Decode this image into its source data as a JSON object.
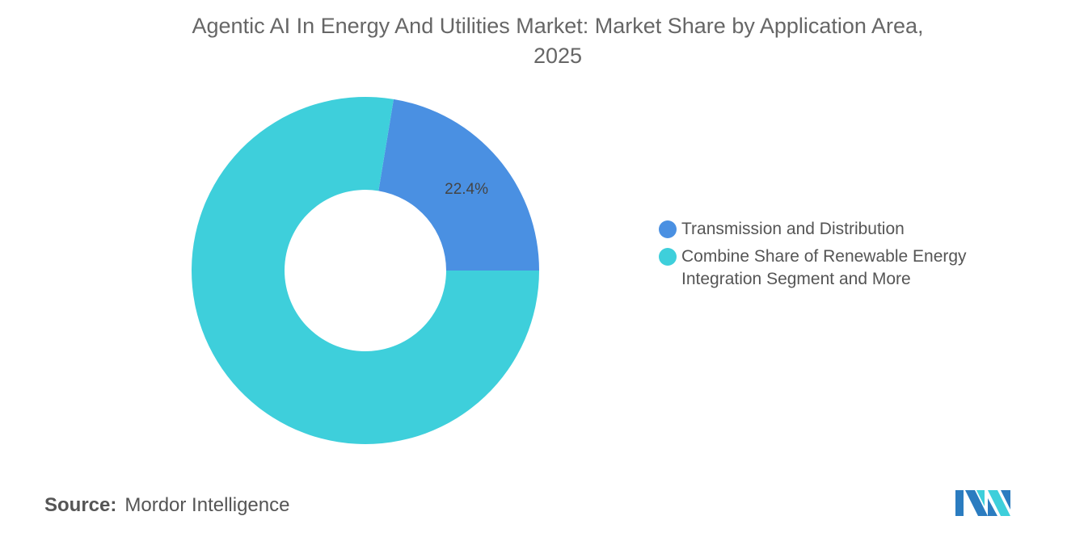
{
  "chart_data": {
    "type": "pie",
    "variant": "donut",
    "title": "Agentic AI In Energy And Utilities Market: Market Share by Application Area, 2025",
    "slices": [
      {
        "name": "Transmission and Distribution",
        "value": 22.4,
        "label": "22.4%",
        "color": "#4a90e2"
      },
      {
        "name": "Combine Share of Renewable Energy Integration Segment and More",
        "value": 77.6,
        "label": "",
        "color": "#3ecfdb"
      }
    ],
    "legend_position": "right"
  },
  "title_line1": "Agentic AI In Energy And Utilities Market: Market Share by Application Area,",
  "title_line2": "2025",
  "legend": {
    "item0": "Transmission and Distribution",
    "item1": "Combine Share of Renewable Energy Integration Segment and More"
  },
  "source": {
    "label": "Source:",
    "value": "Mordor Intelligence"
  },
  "logo_text": "Mordor Intelligence"
}
